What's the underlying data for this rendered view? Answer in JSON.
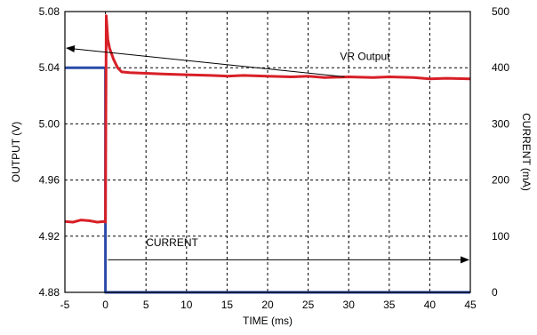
{
  "chart_data": {
    "type": "line",
    "xlabel": "TIME (ms)",
    "ylabel_left": "OUTPUT (V)",
    "ylabel_right": "CURRENT (mA)",
    "xlim": [
      -5,
      45
    ],
    "ylim_left": [
      4.88,
      5.08
    ],
    "ylim_right": [
      0,
      500
    ],
    "x_ticks": [
      -5,
      0,
      5,
      10,
      15,
      20,
      25,
      30,
      35,
      40,
      45
    ],
    "y_left_ticks": [
      "4.88",
      "4.92",
      "4.96",
      "5.00",
      "5.04",
      "5.08"
    ],
    "y_right_ticks": [
      "0",
      "100",
      "200",
      "300",
      "400",
      "500"
    ],
    "grid": true,
    "series": [
      {
        "name": "VR Output",
        "axis": "left",
        "color": "#d81f26",
        "x": [
          -5,
          -4,
          -3,
          -2,
          -1,
          -0.2,
          0,
          0.1,
          0.3,
          0.5,
          1,
          1.5,
          2,
          3,
          5,
          7,
          10,
          13,
          15,
          17,
          20,
          23,
          25,
          27,
          30,
          33,
          35,
          38,
          40,
          42,
          45
        ],
        "y": [
          4.9305,
          4.93,
          4.9315,
          4.931,
          4.93,
          4.9305,
          4.93,
          5.077,
          5.06,
          5.054,
          5.046,
          5.04,
          5.037,
          5.0365,
          5.036,
          5.0355,
          5.035,
          5.0345,
          5.034,
          5.0345,
          5.034,
          5.0335,
          5.034,
          5.033,
          5.0335,
          5.033,
          5.0335,
          5.033,
          5.032,
          5.0325,
          5.032
        ]
      },
      {
        "name": "CURRENT",
        "axis": "right",
        "color": "#2b4aa8",
        "x": [
          -5,
          0,
          0,
          45
        ],
        "y": [
          400,
          400,
          0,
          0
        ]
      }
    ],
    "annotations": [
      {
        "text": "VR  Output",
        "x": 32,
        "y": 5.0455,
        "arrow_to": [
          -5,
          5.054
        ]
      },
      {
        "text": "CURRENT",
        "x": 5,
        "y": 4.913,
        "arrow_from": [
          0.3,
          4.9032
        ],
        "arrow_to": [
          45,
          4.9032
        ]
      }
    ]
  }
}
